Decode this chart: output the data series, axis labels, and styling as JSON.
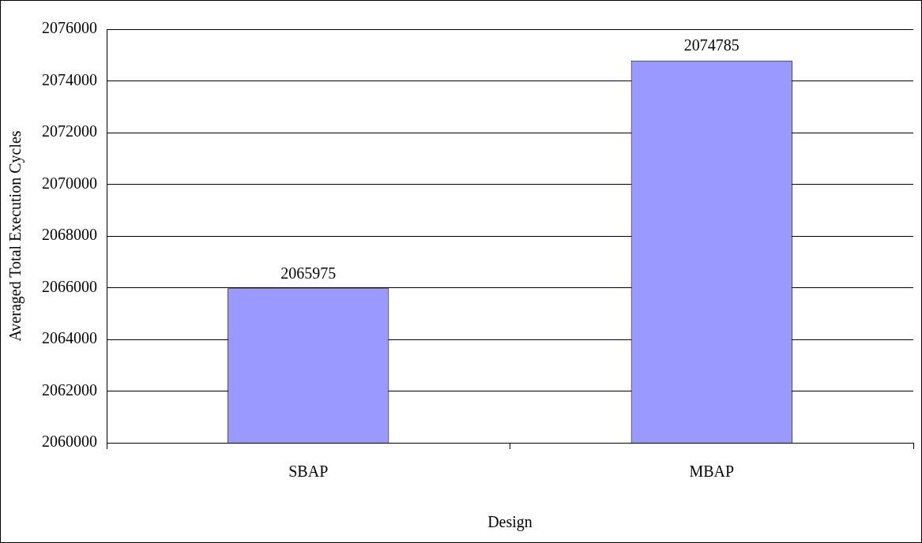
{
  "chart_data": {
    "type": "bar",
    "xlabel": "Design",
    "ylabel": "Averaged Total Execution Cycles",
    "categories": [
      "SBAP",
      "MBAP"
    ],
    "values": [
      2065975,
      2074785
    ],
    "color": "#9999ff",
    "ylim": [
      2060000,
      2076000
    ],
    "yticks": [
      2060000,
      2062000,
      2064000,
      2066000,
      2068000,
      2070000,
      2072000,
      2074000,
      2076000
    ],
    "grid": "y",
    "data_labels": true,
    "legend": false
  }
}
